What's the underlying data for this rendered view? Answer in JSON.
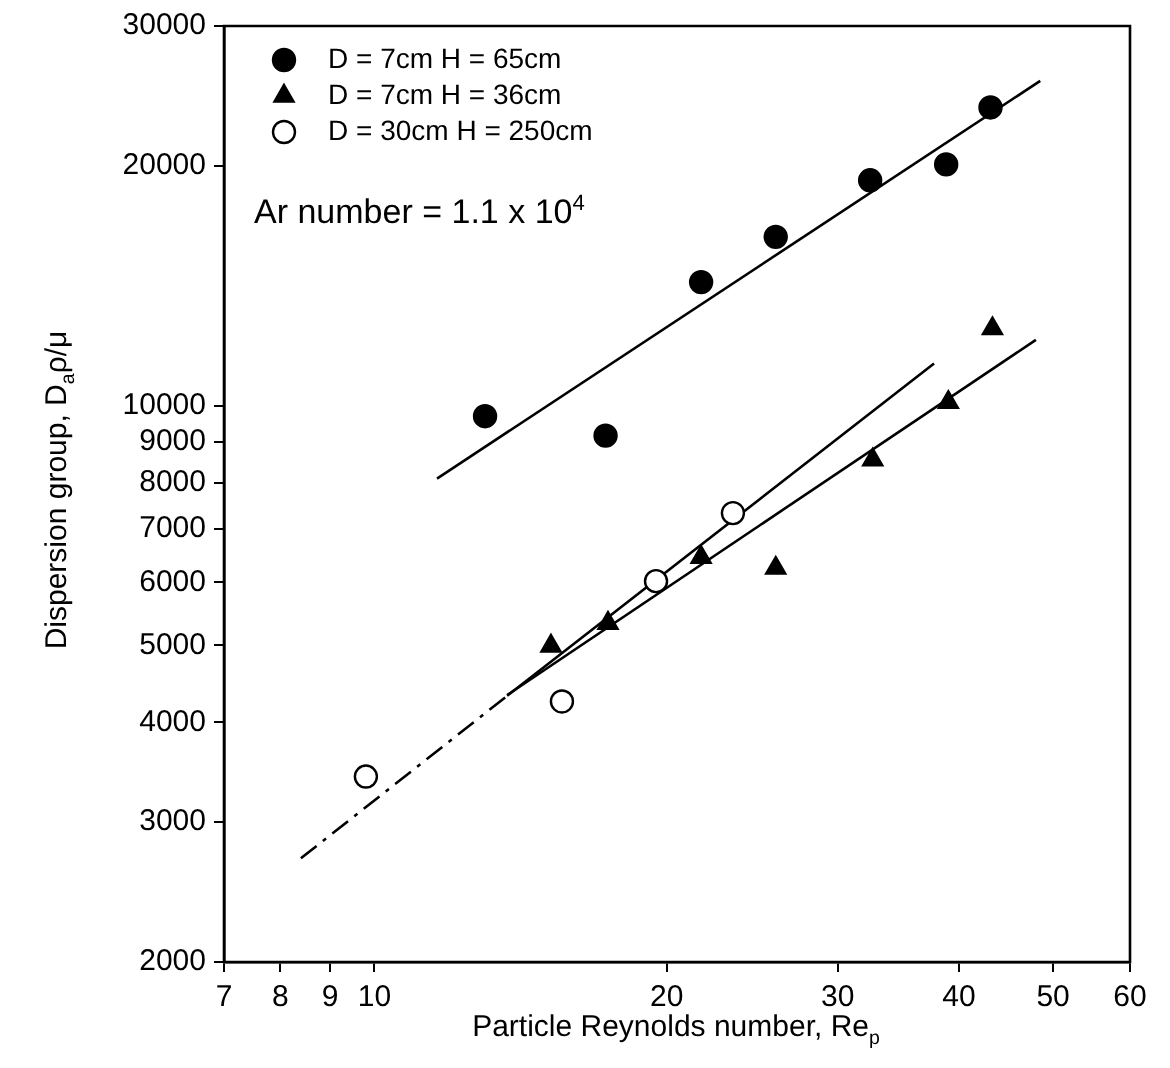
{
  "chart_data": {
    "type": "scatter",
    "xlabel": "Particle Reynolds number, Re$_{p}$",
    "ylabel": "Dispersion group, D$_{a}$ρ/μ",
    "annotations": [
      "Ar number = 1.1 x 10$^{4}$"
    ],
    "log": "xy",
    "xlim": [
      7,
      60
    ],
    "ylim": [
      2000,
      30000
    ],
    "xticks": [
      7,
      8,
      9,
      10,
      20,
      30,
      40,
      50,
      60
    ],
    "yticks": [
      2000,
      3000,
      4000,
      5000,
      6000,
      7000,
      8000,
      9000,
      10000,
      20000,
      30000
    ],
    "grid": false,
    "legend": "top left",
    "series": [
      {
        "name": "D = 7cm H = 65cm",
        "marker": "circle",
        "color": "#000000",
        "x": [
          13.0,
          17.3,
          21.7,
          25.9,
          32.4,
          38.8,
          43.1
        ],
        "values": [
          9700,
          9170,
          14300,
          16300,
          19200,
          20100,
          23700
        ]
      },
      {
        "name": "D = 7cm H = 36cm",
        "marker": "triangle",
        "color": "#000000",
        "x": [
          15.2,
          17.4,
          21.7,
          25.9,
          32.6,
          39.0,
          43.3
        ],
        "values": [
          4990,
          5330,
          6450,
          6250,
          8550,
          10100,
          12500
        ]
      },
      {
        "name": "D = 30cm H = 250cm",
        "marker": "circle",
        "color": "#ffffff",
        "x": [
          9.8,
          15.6,
          19.5,
          23.4
        ],
        "values": [
          3420,
          4250,
          6020,
          7330
        ]
      },
      {
        "type": "line",
        "marker": "none",
        "line_style": "solid",
        "color": "#000000",
        "x": [
          11.6,
          48.5
        ],
        "values": [
          8100,
          25600
        ]
      },
      {
        "type": "line",
        "marker": "none",
        "line_style": "solid",
        "color": "#000000",
        "x": [
          13.7,
          48.0
        ],
        "values": [
          4330,
          12100
        ]
      },
      {
        "type": "line",
        "marker": "none",
        "line_style": "dashed",
        "color": "#000000",
        "x": [
          8.4,
          13.7
        ],
        "values": [
          2700,
          4320
        ]
      },
      {
        "type": "line",
        "marker": "none",
        "line_style": "solid",
        "color": "#000000",
        "x": [
          13.7,
          37.7
        ],
        "values": [
          4320,
          11300
        ]
      }
    ]
  }
}
